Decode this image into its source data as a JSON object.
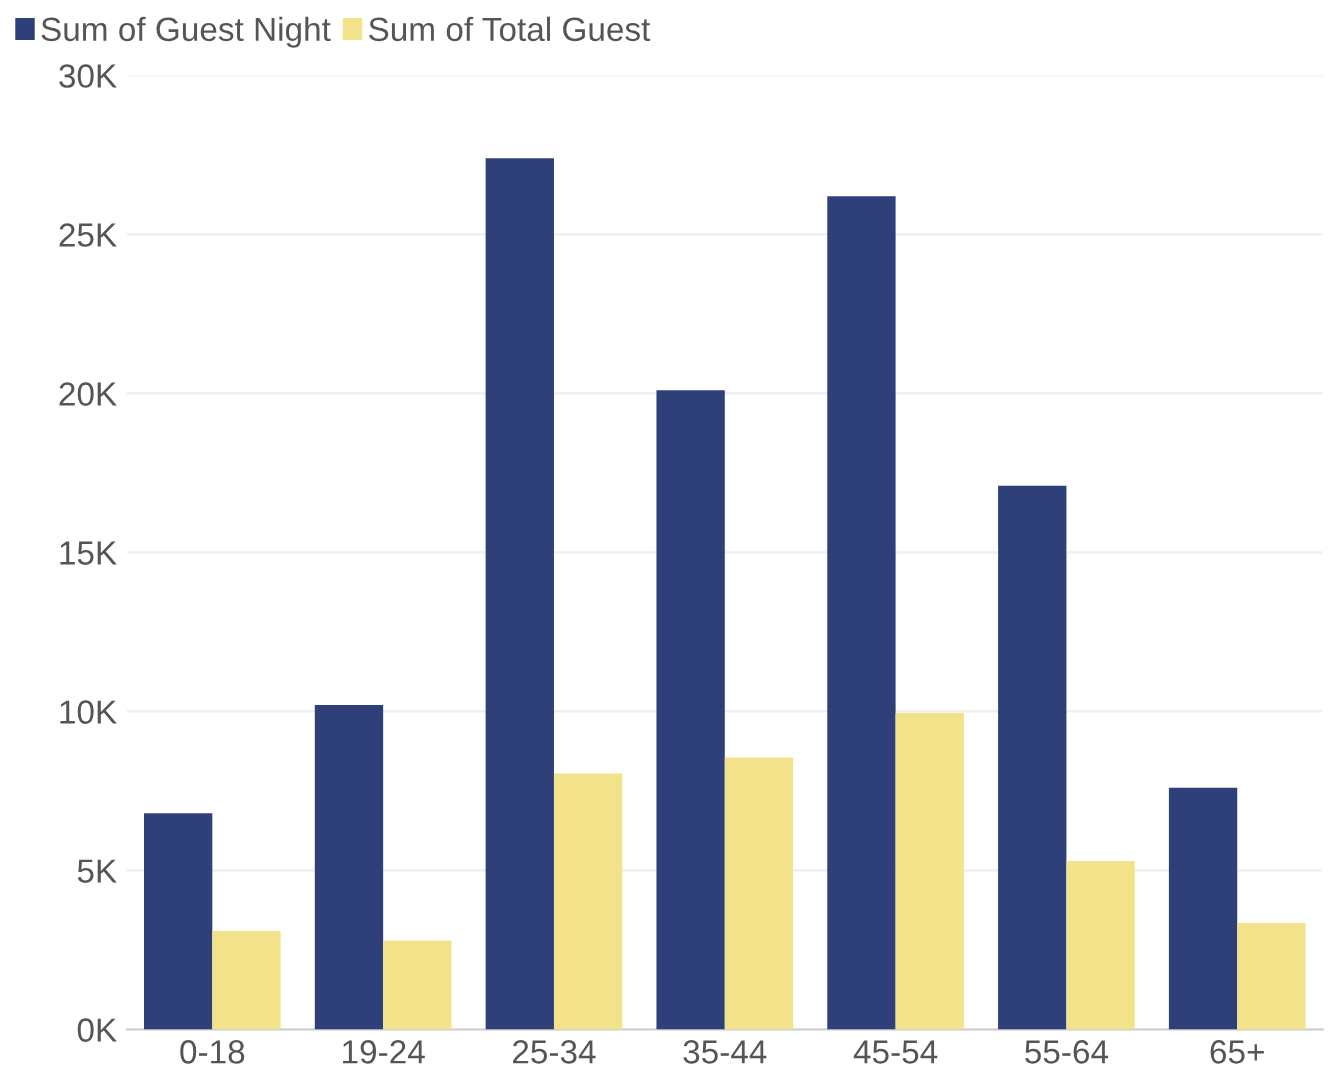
{
  "chart_data": {
    "type": "bar",
    "categories": [
      "0-18",
      "19-24",
      "25-34",
      "35-44",
      "45-54",
      "55-64",
      "65+"
    ],
    "series": [
      {
        "name": "Sum of Guest Night",
        "color": "#2e3f7a",
        "values": [
          6800,
          10200,
          27400,
          20100,
          26200,
          17100,
          7600
        ]
      },
      {
        "name": "Sum of Total Guest",
        "color": "#f2e38a",
        "values": [
          3100,
          2800,
          8050,
          8550,
          9950,
          5300,
          3350
        ]
      }
    ],
    "ylim": [
      0,
      30000
    ],
    "yticks": [
      {
        "value": 0,
        "label": "0K"
      },
      {
        "value": 5000,
        "label": "5K"
      },
      {
        "value": 10000,
        "label": "10K"
      },
      {
        "value": 15000,
        "label": "15K"
      },
      {
        "value": 20000,
        "label": "20K"
      },
      {
        "value": 25000,
        "label": "25K"
      },
      {
        "value": 30000,
        "label": "30K"
      }
    ],
    "grid": "y",
    "legend": "top left"
  }
}
